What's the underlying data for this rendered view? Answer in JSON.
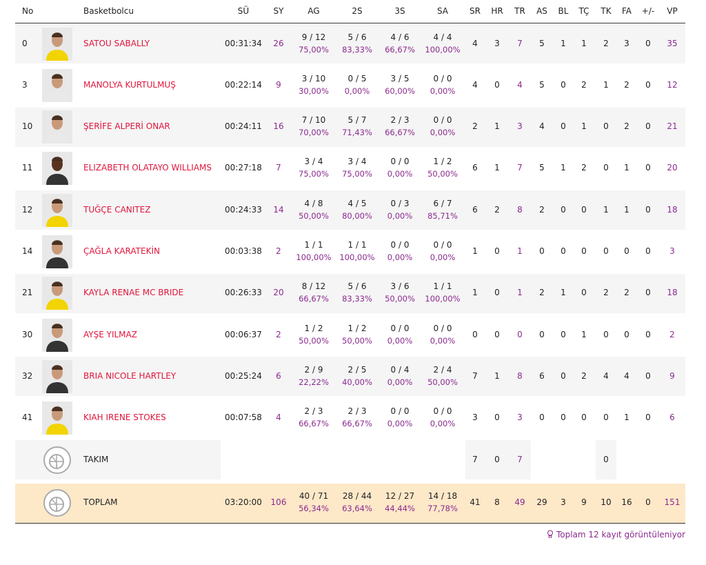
{
  "table": {
    "columns": [
      "No",
      "Basketbolcu",
      "SÜ",
      "SY",
      "AG",
      "2S",
      "3S",
      "SA",
      "SR",
      "HR",
      "TR",
      "AS",
      "BL",
      "TÇ",
      "TK",
      "FA",
      "+/-",
      "VP"
    ],
    "rows": [
      {
        "no": "0",
        "name": "SATOU SABALLY",
        "cells": [
          "00:31:34",
          "26",
          [
            "9 / 12",
            "75,00%"
          ],
          [
            "5 / 6",
            "83,33%"
          ],
          [
            "4 / 6",
            "66,67%"
          ],
          [
            "4 / 4",
            "100,00%"
          ],
          "4",
          "3",
          "7",
          "5",
          "1",
          "1",
          "2",
          "3",
          "0",
          "35"
        ]
      },
      {
        "no": "3",
        "name": "MANOLYA KURTULMUŞ",
        "cells": [
          "00:22:14",
          "9",
          [
            "3 / 10",
            "30,00%"
          ],
          [
            "0 / 5",
            "0,00%"
          ],
          [
            "3 / 5",
            "60,00%"
          ],
          [
            "0 / 0",
            "0,00%"
          ],
          "4",
          "0",
          "4",
          "5",
          "0",
          "2",
          "1",
          "2",
          "0",
          "12"
        ]
      },
      {
        "no": "10",
        "name": "ŞERİFE ALPERİ ONAR",
        "cells": [
          "00:24:11",
          "16",
          [
            "7 / 10",
            "70,00%"
          ],
          [
            "5 / 7",
            "71,43%"
          ],
          [
            "2 / 3",
            "66,67%"
          ],
          [
            "0 / 0",
            "0,00%"
          ],
          "2",
          "1",
          "3",
          "4",
          "0",
          "1",
          "0",
          "2",
          "0",
          "21"
        ]
      },
      {
        "no": "11",
        "name": "ELIZABETH OLATAYO WILLIAMS",
        "cells": [
          "00:27:18",
          "7",
          [
            "3 / 4",
            "75,00%"
          ],
          [
            "3 / 4",
            "75,00%"
          ],
          [
            "0 / 0",
            "0,00%"
          ],
          [
            "1 / 2",
            "50,00%"
          ],
          "6",
          "1",
          "7",
          "5",
          "1",
          "2",
          "0",
          "1",
          "0",
          "20"
        ]
      },
      {
        "no": "12",
        "name": "TUĞÇE CANITEZ",
        "cells": [
          "00:24:33",
          "14",
          [
            "4 / 8",
            "50,00%"
          ],
          [
            "4 / 5",
            "80,00%"
          ],
          [
            "0 / 3",
            "0,00%"
          ],
          [
            "6 / 7",
            "85,71%"
          ],
          "6",
          "2",
          "8",
          "2",
          "0",
          "0",
          "1",
          "1",
          "0",
          "18"
        ]
      },
      {
        "no": "14",
        "name": "ÇAĞLA KARATEKİN",
        "cells": [
          "00:03:38",
          "2",
          [
            "1 / 1",
            "100,00%"
          ],
          [
            "1 / 1",
            "100,00%"
          ],
          [
            "0 / 0",
            "0,00%"
          ],
          [
            "0 / 0",
            "0,00%"
          ],
          "1",
          "0",
          "1",
          "0",
          "0",
          "0",
          "0",
          "0",
          "0",
          "3"
        ]
      },
      {
        "no": "21",
        "name": "KAYLA RENAE MC BRIDE",
        "cells": [
          "00:26:33",
          "20",
          [
            "8 / 12",
            "66,67%"
          ],
          [
            "5 / 6",
            "83,33%"
          ],
          [
            "3 / 6",
            "50,00%"
          ],
          [
            "1 / 1",
            "100,00%"
          ],
          "1",
          "0",
          "1",
          "2",
          "1",
          "0",
          "2",
          "2",
          "0",
          "18"
        ]
      },
      {
        "no": "30",
        "name": "AYŞE YILMAZ",
        "cells": [
          "00:06:37",
          "2",
          [
            "1 / 2",
            "50,00%"
          ],
          [
            "1 / 2",
            "50,00%"
          ],
          [
            "0 / 0",
            "0,00%"
          ],
          [
            "0 / 0",
            "0,00%"
          ],
          "0",
          "0",
          "0",
          "0",
          "0",
          "1",
          "0",
          "0",
          "0",
          "2"
        ]
      },
      {
        "no": "32",
        "name": "BRIA NICOLE HARTLEY",
        "cells": [
          "00:25:24",
          "6",
          [
            "2 / 9",
            "22,22%"
          ],
          [
            "2 / 5",
            "40,00%"
          ],
          [
            "0 / 4",
            "0,00%"
          ],
          [
            "2 / 4",
            "50,00%"
          ],
          "7",
          "1",
          "8",
          "6",
          "0",
          "2",
          "4",
          "4",
          "0",
          "9"
        ]
      },
      {
        "no": "41",
        "name": "KIAH IRENE STOKES",
        "cells": [
          "00:07:58",
          "4",
          [
            "2 / 3",
            "66,67%"
          ],
          [
            "2 / 3",
            "66,67%"
          ],
          [
            "0 / 0",
            "0,00%"
          ],
          [
            "0 / 0",
            "0,00%"
          ],
          "3",
          "0",
          "3",
          "0",
          "0",
          "0",
          "0",
          "1",
          "0",
          "6"
        ]
      },
      {
        "no": null,
        "name": "TAKIM",
        "cells": [
          null,
          null,
          null,
          null,
          null,
          null,
          "7",
          "0",
          "7",
          null,
          null,
          null,
          "0",
          null,
          null,
          null
        ]
      },
      {
        "no": null,
        "name": "TOPLAM",
        "cells": [
          "03:20:00",
          "106",
          [
            "40 / 71",
            "56,34%"
          ],
          [
            "28 / 44",
            "63,64%"
          ],
          [
            "12 / 27",
            "44,44%"
          ],
          [
            "14 / 18",
            "77,78%"
          ],
          "41",
          "8",
          "49",
          "29",
          "3",
          "9",
          "10",
          "16",
          "0",
          "151"
        ]
      }
    ]
  },
  "footer": "Toplam 12 kayıt görüntüleniyor"
}
